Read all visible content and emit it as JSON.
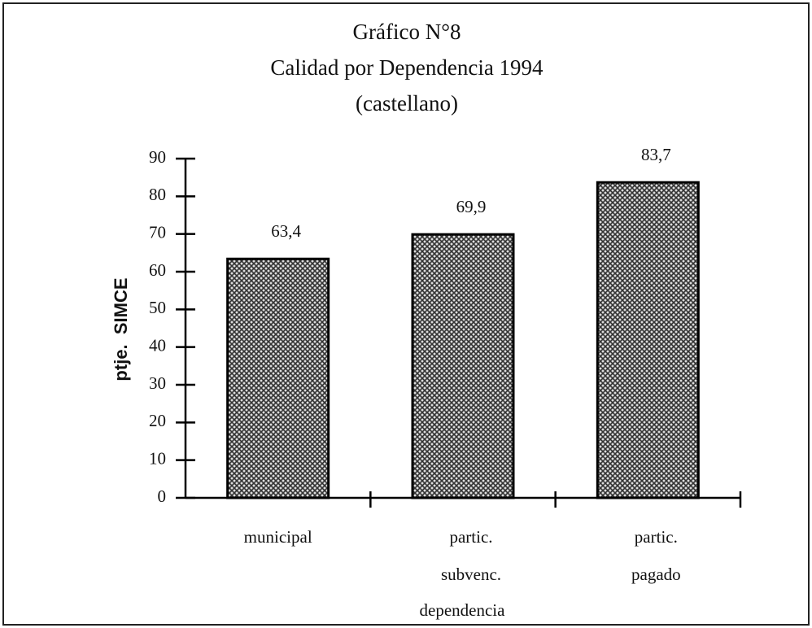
{
  "chart_data": {
    "type": "bar",
    "title": "Gráfico N°8",
    "subtitle": [
      "Calidad por Dependencia 1994",
      "(castellano)"
    ],
    "categories": [
      [
        "municipal"
      ],
      [
        "partic.",
        "subvenc."
      ],
      [
        "partic.",
        "pagado"
      ]
    ],
    "values": [
      63.4,
      69.9,
      83.7
    ],
    "value_labels": [
      "63,4",
      "69,9",
      "83,7"
    ],
    "color": "#555555",
    "ylim": [
      0,
      90
    ],
    "yticks": [
      0,
      10,
      20,
      30,
      40,
      50,
      60,
      70,
      80,
      90
    ],
    "y_label": "ptje.  SIMCE",
    "x_label": "dependencia",
    "grid": false
  }
}
